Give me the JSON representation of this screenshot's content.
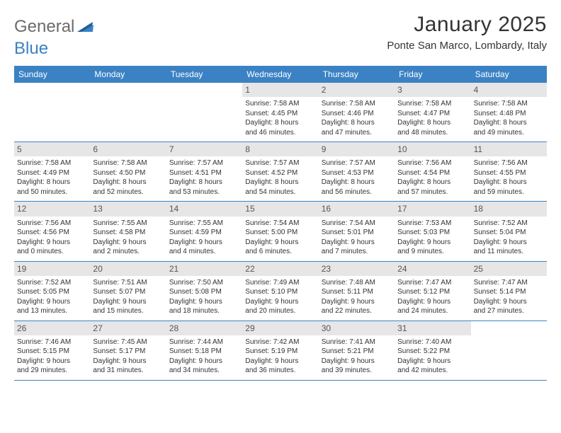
{
  "logo": {
    "part1": "General",
    "part2": "Blue"
  },
  "title": "January 2025",
  "location": "Ponte San Marco, Lombardy, Italy",
  "colors": {
    "header_bg": "#3b82c4",
    "header_text": "#ffffff",
    "daynum_bg": "#e6e6e6",
    "text": "#333333",
    "logo_gray": "#6b6b6b",
    "logo_blue": "#3b82c4",
    "border": "#3b82c4"
  },
  "day_names": [
    "Sunday",
    "Monday",
    "Tuesday",
    "Wednesday",
    "Thursday",
    "Friday",
    "Saturday"
  ],
  "weeks": [
    [
      {
        "n": "",
        "sr": "",
        "ss": "",
        "d1": "",
        "d2": ""
      },
      {
        "n": "",
        "sr": "",
        "ss": "",
        "d1": "",
        "d2": ""
      },
      {
        "n": "",
        "sr": "",
        "ss": "",
        "d1": "",
        "d2": ""
      },
      {
        "n": "1",
        "sr": "Sunrise: 7:58 AM",
        "ss": "Sunset: 4:45 PM",
        "d1": "Daylight: 8 hours",
        "d2": "and 46 minutes."
      },
      {
        "n": "2",
        "sr": "Sunrise: 7:58 AM",
        "ss": "Sunset: 4:46 PM",
        "d1": "Daylight: 8 hours",
        "d2": "and 47 minutes."
      },
      {
        "n": "3",
        "sr": "Sunrise: 7:58 AM",
        "ss": "Sunset: 4:47 PM",
        "d1": "Daylight: 8 hours",
        "d2": "and 48 minutes."
      },
      {
        "n": "4",
        "sr": "Sunrise: 7:58 AM",
        "ss": "Sunset: 4:48 PM",
        "d1": "Daylight: 8 hours",
        "d2": "and 49 minutes."
      }
    ],
    [
      {
        "n": "5",
        "sr": "Sunrise: 7:58 AM",
        "ss": "Sunset: 4:49 PM",
        "d1": "Daylight: 8 hours",
        "d2": "and 50 minutes."
      },
      {
        "n": "6",
        "sr": "Sunrise: 7:58 AM",
        "ss": "Sunset: 4:50 PM",
        "d1": "Daylight: 8 hours",
        "d2": "and 52 minutes."
      },
      {
        "n": "7",
        "sr": "Sunrise: 7:57 AM",
        "ss": "Sunset: 4:51 PM",
        "d1": "Daylight: 8 hours",
        "d2": "and 53 minutes."
      },
      {
        "n": "8",
        "sr": "Sunrise: 7:57 AM",
        "ss": "Sunset: 4:52 PM",
        "d1": "Daylight: 8 hours",
        "d2": "and 54 minutes."
      },
      {
        "n": "9",
        "sr": "Sunrise: 7:57 AM",
        "ss": "Sunset: 4:53 PM",
        "d1": "Daylight: 8 hours",
        "d2": "and 56 minutes."
      },
      {
        "n": "10",
        "sr": "Sunrise: 7:56 AM",
        "ss": "Sunset: 4:54 PM",
        "d1": "Daylight: 8 hours",
        "d2": "and 57 minutes."
      },
      {
        "n": "11",
        "sr": "Sunrise: 7:56 AM",
        "ss": "Sunset: 4:55 PM",
        "d1": "Daylight: 8 hours",
        "d2": "and 59 minutes."
      }
    ],
    [
      {
        "n": "12",
        "sr": "Sunrise: 7:56 AM",
        "ss": "Sunset: 4:56 PM",
        "d1": "Daylight: 9 hours",
        "d2": "and 0 minutes."
      },
      {
        "n": "13",
        "sr": "Sunrise: 7:55 AM",
        "ss": "Sunset: 4:58 PM",
        "d1": "Daylight: 9 hours",
        "d2": "and 2 minutes."
      },
      {
        "n": "14",
        "sr": "Sunrise: 7:55 AM",
        "ss": "Sunset: 4:59 PM",
        "d1": "Daylight: 9 hours",
        "d2": "and 4 minutes."
      },
      {
        "n": "15",
        "sr": "Sunrise: 7:54 AM",
        "ss": "Sunset: 5:00 PM",
        "d1": "Daylight: 9 hours",
        "d2": "and 6 minutes."
      },
      {
        "n": "16",
        "sr": "Sunrise: 7:54 AM",
        "ss": "Sunset: 5:01 PM",
        "d1": "Daylight: 9 hours",
        "d2": "and 7 minutes."
      },
      {
        "n": "17",
        "sr": "Sunrise: 7:53 AM",
        "ss": "Sunset: 5:03 PM",
        "d1": "Daylight: 9 hours",
        "d2": "and 9 minutes."
      },
      {
        "n": "18",
        "sr": "Sunrise: 7:52 AM",
        "ss": "Sunset: 5:04 PM",
        "d1": "Daylight: 9 hours",
        "d2": "and 11 minutes."
      }
    ],
    [
      {
        "n": "19",
        "sr": "Sunrise: 7:52 AM",
        "ss": "Sunset: 5:05 PM",
        "d1": "Daylight: 9 hours",
        "d2": "and 13 minutes."
      },
      {
        "n": "20",
        "sr": "Sunrise: 7:51 AM",
        "ss": "Sunset: 5:07 PM",
        "d1": "Daylight: 9 hours",
        "d2": "and 15 minutes."
      },
      {
        "n": "21",
        "sr": "Sunrise: 7:50 AM",
        "ss": "Sunset: 5:08 PM",
        "d1": "Daylight: 9 hours",
        "d2": "and 18 minutes."
      },
      {
        "n": "22",
        "sr": "Sunrise: 7:49 AM",
        "ss": "Sunset: 5:10 PM",
        "d1": "Daylight: 9 hours",
        "d2": "and 20 minutes."
      },
      {
        "n": "23",
        "sr": "Sunrise: 7:48 AM",
        "ss": "Sunset: 5:11 PM",
        "d1": "Daylight: 9 hours",
        "d2": "and 22 minutes."
      },
      {
        "n": "24",
        "sr": "Sunrise: 7:47 AM",
        "ss": "Sunset: 5:12 PM",
        "d1": "Daylight: 9 hours",
        "d2": "and 24 minutes."
      },
      {
        "n": "25",
        "sr": "Sunrise: 7:47 AM",
        "ss": "Sunset: 5:14 PM",
        "d1": "Daylight: 9 hours",
        "d2": "and 27 minutes."
      }
    ],
    [
      {
        "n": "26",
        "sr": "Sunrise: 7:46 AM",
        "ss": "Sunset: 5:15 PM",
        "d1": "Daylight: 9 hours",
        "d2": "and 29 minutes."
      },
      {
        "n": "27",
        "sr": "Sunrise: 7:45 AM",
        "ss": "Sunset: 5:17 PM",
        "d1": "Daylight: 9 hours",
        "d2": "and 31 minutes."
      },
      {
        "n": "28",
        "sr": "Sunrise: 7:44 AM",
        "ss": "Sunset: 5:18 PM",
        "d1": "Daylight: 9 hours",
        "d2": "and 34 minutes."
      },
      {
        "n": "29",
        "sr": "Sunrise: 7:42 AM",
        "ss": "Sunset: 5:19 PM",
        "d1": "Daylight: 9 hours",
        "d2": "and 36 minutes."
      },
      {
        "n": "30",
        "sr": "Sunrise: 7:41 AM",
        "ss": "Sunset: 5:21 PM",
        "d1": "Daylight: 9 hours",
        "d2": "and 39 minutes."
      },
      {
        "n": "31",
        "sr": "Sunrise: 7:40 AM",
        "ss": "Sunset: 5:22 PM",
        "d1": "Daylight: 9 hours",
        "d2": "and 42 minutes."
      },
      {
        "n": "",
        "sr": "",
        "ss": "",
        "d1": "",
        "d2": ""
      }
    ]
  ]
}
